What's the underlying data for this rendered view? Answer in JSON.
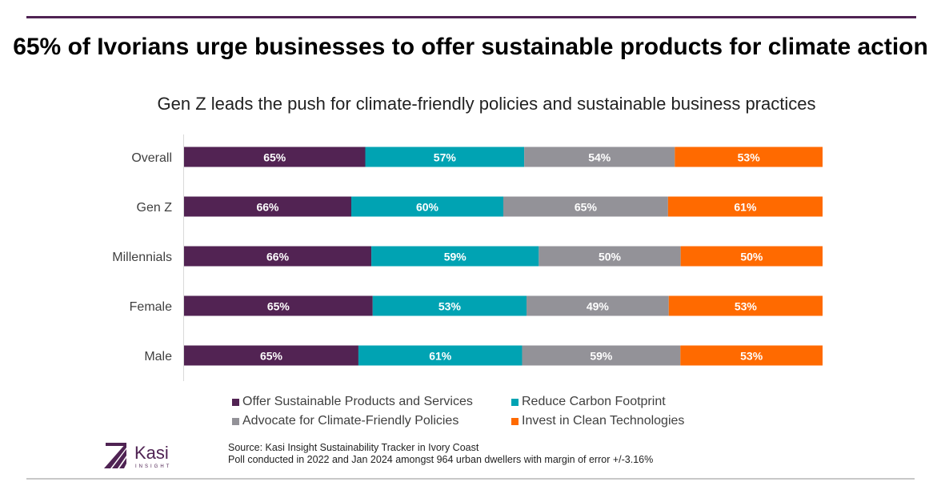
{
  "title": "65% of Ivorians urge businesses to offer sustainable products for climate action",
  "subtitle": "Gen Z leads the push for climate-friendly policies and sustainable business practices",
  "chart_data": {
    "type": "bar",
    "orientation": "horizontal",
    "stacked": "100%",
    "categories": [
      "Overall",
      "Gen Z",
      "Millennials",
      "Female",
      "Male"
    ],
    "series": [
      {
        "name": "Offer Sustainable Products and Services",
        "color": "#522353",
        "values": [
          65,
          66,
          66,
          65,
          65
        ],
        "labels": [
          "65%",
          "66%",
          "66%",
          "65%",
          "65%"
        ]
      },
      {
        "name": "Reduce Carbon Footprint",
        "color": "#00a3b3",
        "values": [
          57,
          60,
          59,
          53,
          61
        ],
        "labels": [
          "57%",
          "60%",
          "59%",
          "53%",
          "61%"
        ]
      },
      {
        "name": "Advocate for Climate-Friendly Policies",
        "color": "#939298",
        "values": [
          54,
          65,
          50,
          49,
          59
        ],
        "labels": [
          "54%",
          "65%",
          "50%",
          "49%",
          "59%"
        ]
      },
      {
        "name": "Invest in Clean Technologies",
        "color": "#ff6a00",
        "values": [
          53,
          61,
          50,
          53,
          53
        ],
        "labels": [
          "53%",
          "61%",
          "50%",
          "53%",
          "53%"
        ]
      }
    ],
    "legend_position": "bottom",
    "grid": false
  },
  "source": {
    "line1": "Source: Kasi Insight Sustainability Tracker in Ivory Coast",
    "line2": "Poll  conducted in 2022 and Jan 2024 amongst 964 urban dwellers with margin of error +/-3.16%"
  },
  "logo": {
    "name": "Kasi",
    "tagline": "INSIGHT",
    "color": "#4f2353"
  }
}
